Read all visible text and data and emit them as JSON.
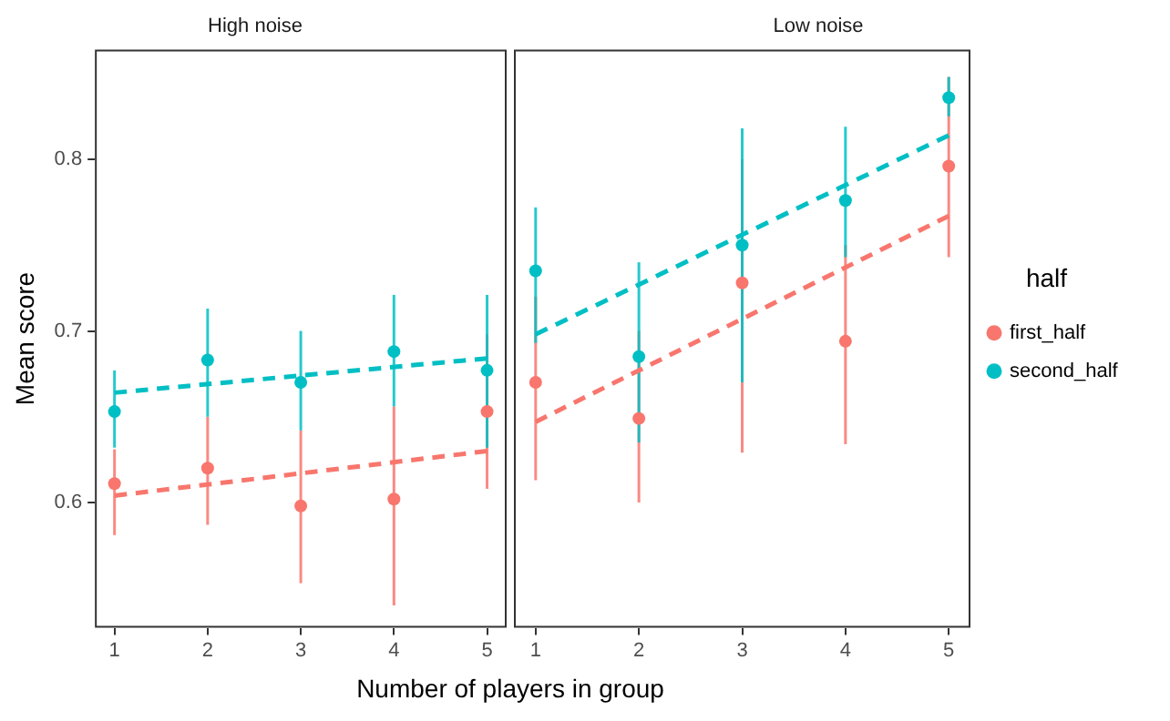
{
  "chart_data": [
    {
      "type": "scatter",
      "title": "High noise",
      "xlabel": "Number of players in group",
      "ylabel": "Mean score",
      "xlim": [
        0.79,
        5.21
      ],
      "xticks": [
        1,
        2,
        3,
        4,
        5
      ],
      "ylim": [
        0.527,
        0.864
      ],
      "yticks": [
        0.6,
        0.7,
        0.8
      ],
      "grid": false,
      "legend": false,
      "marker": "circle",
      "series": [
        {
          "color": "#f8766d",
          "x": [
            1,
            2,
            3,
            4,
            5
          ],
          "values": [
            0.611,
            0.62,
            0.598,
            0.602,
            0.653
          ],
          "errors": [
            [
              0.581,
              0.631
            ],
            [
              0.587,
              0.65
            ],
            [
              0.553,
              0.642
            ],
            [
              0.54,
              0.656
            ],
            [
              0.608,
              0.698
            ]
          ]
        },
        {
          "color": "#00bfc4",
          "x": [
            1,
            2,
            3,
            4,
            5
          ],
          "values": [
            0.653,
            0.683,
            0.67,
            0.688,
            0.677
          ],
          "errors": [
            [
              0.632,
              0.677
            ],
            [
              0.65,
              0.713
            ],
            [
              0.642,
              0.7
            ],
            [
              0.656,
              0.721
            ],
            [
              0.632,
              0.721
            ]
          ]
        },
        {
          "type": "line",
          "color": "#f8766d",
          "x": [
            1,
            5
          ],
          "values": [
            0.604,
            0.63
          ],
          "line_style": "dashed",
          "marker": "none"
        },
        {
          "type": "line",
          "color": "#00bfc4",
          "x": [
            1,
            5
          ],
          "values": [
            0.664,
            0.684
          ],
          "line_style": "dashed",
          "marker": "none"
        }
      ]
    },
    {
      "type": "scatter",
      "title": "Low noise",
      "xlim": [
        0.79,
        5.21
      ],
      "xticks": [
        1,
        2,
        3,
        4,
        5
      ],
      "ylim": [
        0.527,
        0.864
      ],
      "yticks": [
        0.6,
        0.7,
        0.8
      ],
      "tick_labels": "x",
      "grid": false,
      "legend": "right",
      "legend_title": "half",
      "marker": "circle",
      "series": [
        {
          "name": "first_half",
          "color": "#f8766d",
          "x": [
            1,
            2,
            3,
            4,
            5
          ],
          "values": [
            0.67,
            0.649,
            0.728,
            0.694,
            0.796
          ],
          "errors": [
            [
              0.613,
              0.72
            ],
            [
              0.6,
              0.7
            ],
            [
              0.629,
              0.8
            ],
            [
              0.634,
              0.75
            ],
            [
              0.743,
              0.848
            ]
          ]
        },
        {
          "name": "second_half",
          "color": "#00bfc4",
          "x": [
            1,
            2,
            3,
            4,
            5
          ],
          "values": [
            0.735,
            0.685,
            0.75,
            0.776,
            0.836
          ],
          "errors": [
            [
              0.693,
              0.772
            ],
            [
              0.635,
              0.74
            ],
            [
              0.67,
              0.818
            ],
            [
              0.743,
              0.819
            ],
            [
              0.825,
              0.848
            ]
          ]
        },
        {
          "type": "line",
          "color": "#f8766d",
          "x": [
            1,
            5
          ],
          "values": [
            0.647,
            0.767
          ],
          "line_style": "dashed",
          "marker": "none"
        },
        {
          "type": "line",
          "color": "#00bfc4",
          "x": [
            1,
            5
          ],
          "values": [
            0.698,
            0.814
          ],
          "line_style": "dashed",
          "marker": "none"
        }
      ]
    }
  ]
}
